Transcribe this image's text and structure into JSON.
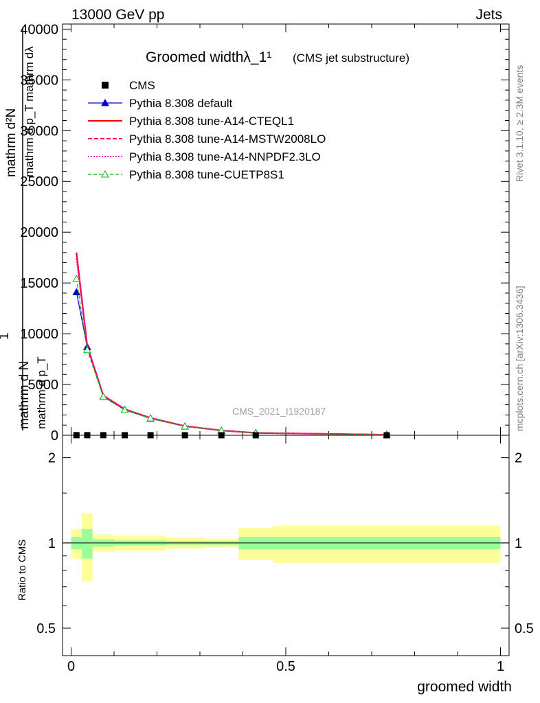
{
  "header": {
    "left": "13000 GeV pp",
    "right": "Jets"
  },
  "side": {
    "rivet": "Rivet 3.1.10, ≥ 2.3M events",
    "mcplots": "mcplots.cern.ch [arXiv:1306.3436]"
  },
  "watermark": "CMS_2021_I1920187",
  "chart_data": {
    "type": "line",
    "title": "Groomed widthλ_1¹",
    "subtitle": "(CMS jet substructure)",
    "ylabel_lines": [
      "mathrm d²N",
      "mathrm d p_T mathrm dλ",
      "mathrm d N",
      "mathrm d p_T"
    ],
    "ylabel_prefix": "1",
    "xlabel": "groomed width",
    "ratio_ylabel": "Ratio to CMS",
    "xlim": [
      -0.02,
      1.02
    ],
    "ylim": [
      0,
      40500
    ],
    "ratio_ylim": [
      0.4,
      2.4
    ],
    "xticks": [
      {
        "v": 0,
        "label": "0"
      },
      {
        "v": 0.5,
        "label": "0.5"
      },
      {
        "v": 1,
        "label": "1"
      }
    ],
    "yticks": [
      {
        "v": 0,
        "label": "0"
      },
      {
        "v": 5000,
        "label": "5000"
      },
      {
        "v": 10000,
        "label": "10000"
      },
      {
        "v": 15000,
        "label": "15000"
      },
      {
        "v": 20000,
        "label": "20000"
      },
      {
        "v": 25000,
        "label": "25000"
      },
      {
        "v": 30000,
        "label": "30000"
      },
      {
        "v": 35000,
        "label": "35000"
      },
      {
        "v": 40000,
        "label": "40000"
      }
    ],
    "ratio_yticks": [
      {
        "v": 0.5,
        "label": "0.5"
      },
      {
        "v": 1,
        "label": "1"
      },
      {
        "v": 2,
        "label": "2"
      }
    ],
    "bins": [
      [
        0,
        0.025
      ],
      [
        0.025,
        0.05
      ],
      [
        0.05,
        0.1
      ],
      [
        0.1,
        0.15
      ],
      [
        0.15,
        0.22
      ],
      [
        0.22,
        0.31
      ],
      [
        0.31,
        0.39
      ],
      [
        0.39,
        0.47
      ],
      [
        0.47,
        1.0
      ]
    ],
    "x": [
      0.0125,
      0.0375,
      0.075,
      0.125,
      0.185,
      0.265,
      0.35,
      0.43,
      0.735
    ],
    "data": {
      "name": "CMS",
      "values": [
        10,
        10,
        8,
        6,
        4,
        3,
        2,
        1.5,
        0.5
      ],
      "stat_err": [
        0.05,
        0.12,
        0.03,
        0.02,
        0.02,
        0.015,
        0.015,
        0.05,
        0.05
      ],
      "tot_err": [
        0.12,
        0.27,
        0.07,
        0.06,
        0.06,
        0.045,
        0.035,
        0.13,
        0.15
      ]
    },
    "series": [
      {
        "name": "Pythia 8.308 default",
        "color": "#0000cc",
        "style": "solid-triangle",
        "values": [
          14100,
          8700,
          3800,
          2500,
          1650,
          870,
          460,
          230,
          60
        ]
      },
      {
        "name": "Pythia 8.308 tune-A14-CTEQL1",
        "color": "#ff0000",
        "style": "solid-thick",
        "values": [
          18000,
          8800,
          3900,
          2550,
          1700,
          900,
          470,
          230,
          55
        ]
      },
      {
        "name": "Pythia 8.308 tune-A14-MSTW2008LO",
        "color": "#ff0066",
        "style": "dashed",
        "values": [
          17800,
          8800,
          3900,
          2550,
          1700,
          900,
          470,
          230,
          55
        ]
      },
      {
        "name": "Pythia 8.308 tune-A14-NNPDF2.3LO",
        "color": "#ff00cc",
        "style": "dotted",
        "values": [
          17400,
          8900,
          3950,
          2600,
          1720,
          910,
          480,
          235,
          55
        ]
      },
      {
        "name": "Pythia 8.308 tune-CUETP8S1",
        "color": "#00bb00",
        "style": "dashed-open-triangle",
        "values": [
          15400,
          8400,
          3800,
          2500,
          1680,
          880,
          465,
          230,
          58
        ]
      }
    ]
  }
}
